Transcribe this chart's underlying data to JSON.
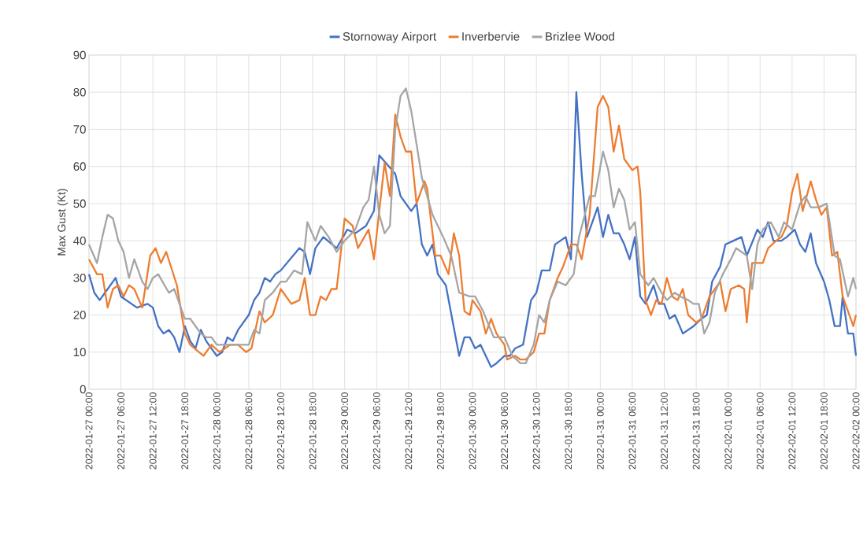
{
  "chart_data": {
    "type": "line",
    "ylabel": "Max Gust (Kt)",
    "legend": "top",
    "grid": true,
    "marker": "none",
    "line_style": "solid",
    "xlim": [
      "2022-01-27T00:00",
      "2022-02-02T00:00"
    ],
    "ylim": [
      0,
      90
    ],
    "yticks": [
      0,
      10,
      20,
      30,
      40,
      50,
      60,
      70,
      80,
      90
    ],
    "xticks": [
      {
        "value": "2022-01-27T00:00",
        "label": "2022-01-27 00:00"
      },
      {
        "value": "2022-01-27T06:00",
        "label": "2022-01-27 06:00"
      },
      {
        "value": "2022-01-27T12:00",
        "label": "2022-01-27 12:00"
      },
      {
        "value": "2022-01-27T18:00",
        "label": "2022-01-27 18:00"
      },
      {
        "value": "2022-01-28T00:00",
        "label": "2022-01-28 00:00"
      },
      {
        "value": "2022-01-28T06:00",
        "label": "2022-01-28 06:00"
      },
      {
        "value": "2022-01-28T12:00",
        "label": "2022-01-28 12:00"
      },
      {
        "value": "2022-01-28T18:00",
        "label": "2022-01-28 18:00"
      },
      {
        "value": "2022-01-29T00:00",
        "label": "2022-01-29 00:00"
      },
      {
        "value": "2022-01-29T06:00",
        "label": "2022-01-29 06:00"
      },
      {
        "value": "2022-01-29T12:00",
        "label": "2022-01-29 12:00"
      },
      {
        "value": "2022-01-29T18:00",
        "label": "2022-01-29 18:00"
      },
      {
        "value": "2022-01-30T00:00",
        "label": "2022-01-30 00:00"
      },
      {
        "value": "2022-01-30T06:00",
        "label": "2022-01-30 06:00"
      },
      {
        "value": "2022-01-30T12:00",
        "label": "2022-01-30 12:00"
      },
      {
        "value": "2022-01-30T18:00",
        "label": "2022-01-30 18:00"
      },
      {
        "value": "2022-01-31T00:00",
        "label": "2022-01-31 00:00"
      },
      {
        "value": "2022-01-31T06:00",
        "label": "2022-01-31 06:00"
      },
      {
        "value": "2022-01-31T12:00",
        "label": "2022-01-31 12:00"
      },
      {
        "value": "2022-01-31T18:00",
        "label": "2022-01-31 18:00"
      },
      {
        "value": "2022-02-01T00:00",
        "label": "2022-02-01 00:00"
      },
      {
        "value": "2022-02-01T06:00",
        "label": "2022-02-01 06:00"
      },
      {
        "value": "2022-02-01T12:00",
        "label": "2022-02-01 12:00"
      },
      {
        "value": "2022-02-01T18:00",
        "label": "2022-02-01 18:00"
      },
      {
        "value": "2022-02-02T00:00",
        "label": "2022-02-02 00:00"
      }
    ],
    "series": [
      {
        "name": "Stornoway Airport",
        "color": "#4472c4",
        "x": [
          "2022-01-27T00:00",
          "2022-01-27T01:00",
          "2022-01-27T02:00",
          "2022-01-27T03:00",
          "2022-01-27T05:00",
          "2022-01-27T06:00",
          "2022-01-27T09:00",
          "2022-01-27T11:00",
          "2022-01-27T12:00",
          "2022-01-27T13:00",
          "2022-01-27T14:00",
          "2022-01-27T15:00",
          "2022-01-27T16:00",
          "2022-01-27T17:00",
          "2022-01-27T18:00",
          "2022-01-27T19:00",
          "2022-01-27T20:00",
          "2022-01-27T21:00",
          "2022-01-27T22:00",
          "2022-01-27T23:00",
          "2022-01-28T00:00",
          "2022-01-28T01:00",
          "2022-01-28T02:00",
          "2022-01-28T03:00",
          "2022-01-28T04:00",
          "2022-01-28T06:00",
          "2022-01-28T07:00",
          "2022-01-28T08:00",
          "2022-01-28T09:00",
          "2022-01-28T10:00",
          "2022-01-28T11:00",
          "2022-01-28T12:00",
          "2022-01-28T15:30",
          "2022-01-28T16:30",
          "2022-01-28T17:30",
          "2022-01-28T18:30",
          "2022-01-28T20:00",
          "2022-01-28T22:30",
          "2022-01-29T00:30",
          "2022-01-29T02:00",
          "2022-01-29T04:00",
          "2022-01-29T05:30",
          "2022-01-29T06:30",
          "2022-01-29T09:30",
          "2022-01-29T10:30",
          "2022-01-29T12:30",
          "2022-01-29T13:30",
          "2022-01-29T14:30",
          "2022-01-29T15:30",
          "2022-01-29T16:30",
          "2022-01-29T17:30",
          "2022-01-29T19:00",
          "2022-01-29T21:30",
          "2022-01-29T22:30",
          "2022-01-29T23:30",
          "2022-01-30T00:30",
          "2022-01-30T01:30",
          "2022-01-30T03:30",
          "2022-01-30T04:30",
          "2022-01-30T06:00",
          "2022-01-30T07:00",
          "2022-01-30T08:00",
          "2022-01-30T09:30",
          "2022-01-30T10:30",
          "2022-01-30T11:00",
          "2022-01-30T12:00",
          "2022-01-30T13:00",
          "2022-01-30T14:30",
          "2022-01-30T15:30",
          "2022-01-30T17:30",
          "2022-01-30T18:30",
          "2022-01-30T19:30",
          "2022-01-30T20:30",
          "2022-01-30T21:30",
          "2022-01-30T23:30",
          "2022-01-31T00:30",
          "2022-01-31T01:30",
          "2022-01-31T02:30",
          "2022-01-31T03:30",
          "2022-01-31T04:30",
          "2022-01-31T05:30",
          "2022-01-31T06:30",
          "2022-01-31T07:30",
          "2022-01-31T08:30",
          "2022-01-31T10:00",
          "2022-01-31T11:00",
          "2022-01-31T12:00",
          "2022-01-31T13:00",
          "2022-01-31T14:00",
          "2022-01-31T15:30",
          "2022-01-31T17:30",
          "2022-01-31T19:00",
          "2022-01-31T20:00",
          "2022-01-31T21:00",
          "2022-01-31T22:30",
          "2022-01-31T23:30",
          "2022-02-01T01:00",
          "2022-02-01T02:30",
          "2022-02-01T03:30",
          "2022-02-01T05:30",
          "2022-02-01T06:30",
          "2022-02-01T07:30",
          "2022-02-01T08:30",
          "2022-02-01T10:00",
          "2022-02-01T11:00",
          "2022-02-01T12:30",
          "2022-02-01T13:30",
          "2022-02-01T14:30",
          "2022-02-01T15:30",
          "2022-02-01T16:30",
          "2022-02-01T18:00",
          "2022-02-01T19:00",
          "2022-02-01T20:00",
          "2022-02-01T21:00",
          "2022-02-01T21:30",
          "2022-02-01T22:30",
          "2022-02-01T23:30",
          "2022-02-02T00:00"
        ],
        "values": [
          31,
          26,
          24,
          26,
          30,
          25,
          22,
          23,
          22,
          17,
          15,
          16,
          14,
          10,
          17,
          13,
          11,
          16,
          13,
          11,
          9,
          10,
          14,
          13,
          16,
          20,
          24,
          26,
          30,
          29,
          31,
          32,
          38,
          37,
          31,
          38,
          41,
          38,
          43,
          42,
          44,
          48,
          63,
          58,
          52,
          48,
          50,
          39,
          36,
          39,
          31,
          28,
          9,
          14,
          14,
          11,
          12,
          6,
          7,
          9,
          9,
          11,
          12,
          20,
          24,
          26,
          32,
          32,
          39,
          41,
          35,
          80,
          58,
          41,
          49,
          41,
          47,
          42,
          42,
          39,
          35,
          41,
          25,
          23,
          28,
          23,
          23,
          19,
          20,
          15,
          17,
          19,
          20,
          29,
          33,
          39,
          40,
          41,
          36,
          43,
          41,
          45,
          40,
          40,
          41,
          43,
          39,
          37,
          42,
          34,
          29,
          24,
          17,
          17,
          25,
          15,
          15,
          9
        ]
      },
      {
        "name": "Inverbervie",
        "color": "#ed7d31",
        "x": [
          "2022-01-27T00:00",
          "2022-01-27T01:30",
          "2022-01-27T02:30",
          "2022-01-27T03:30",
          "2022-01-27T04:30",
          "2022-01-27T05:30",
          "2022-01-27T06:30",
          "2022-01-27T07:30",
          "2022-01-27T08:30",
          "2022-01-27T10:00",
          "2022-01-27T11:30",
          "2022-01-27T12:30",
          "2022-01-27T13:30",
          "2022-01-27T14:30",
          "2022-01-27T16:30",
          "2022-01-27T18:00",
          "2022-01-27T19:00",
          "2022-01-27T21:30",
          "2022-01-27T23:00",
          "2022-01-28T00:30",
          "2022-01-28T02:30",
          "2022-01-28T04:00",
          "2022-01-28T05:30",
          "2022-01-28T06:30",
          "2022-01-28T08:00",
          "2022-01-28T09:00",
          "2022-01-28T10:30",
          "2022-01-28T12:00",
          "2022-01-28T14:00",
          "2022-01-28T15:30",
          "2022-01-28T16:30",
          "2022-01-28T17:30",
          "2022-01-28T18:30",
          "2022-01-28T19:30",
          "2022-01-28T20:30",
          "2022-01-28T21:30",
          "2022-01-28T22:30",
          "2022-01-29T00:00",
          "2022-01-29T01:30",
          "2022-01-29T02:30",
          "2022-01-29T04:30",
          "2022-01-29T05:30",
          "2022-01-29T07:30",
          "2022-01-29T08:30",
          "2022-01-29T09:30",
          "2022-01-29T10:30",
          "2022-01-29T11:30",
          "2022-01-29T12:30",
          "2022-01-29T13:30",
          "2022-01-29T15:00",
          "2022-01-29T15:30",
          "2022-01-29T17:00",
          "2022-01-29T18:00",
          "2022-01-29T19:30",
          "2022-01-29T20:30",
          "2022-01-29T21:30",
          "2022-01-29T22:30",
          "2022-01-29T23:30",
          "2022-01-30T00:00",
          "2022-01-30T01:30",
          "2022-01-30T02:30",
          "2022-01-30T03:30",
          "2022-01-30T04:30",
          "2022-01-30T06:00",
          "2022-01-30T06:30",
          "2022-01-30T08:00",
          "2022-01-30T09:00",
          "2022-01-30T10:00",
          "2022-01-30T11:30",
          "2022-01-30T12:30",
          "2022-01-30T13:30",
          "2022-01-30T14:30",
          "2022-01-30T16:00",
          "2022-01-30T17:00",
          "2022-01-30T18:30",
          "2022-01-30T19:30",
          "2022-01-30T20:30",
          "2022-01-30T22:00",
          "2022-01-30T23:30",
          "2022-01-31T00:30",
          "2022-01-31T01:30",
          "2022-01-31T02:30",
          "2022-01-31T03:30",
          "2022-01-31T04:30",
          "2022-01-31T06:00",
          "2022-01-31T07:00",
          "2022-01-31T07:30",
          "2022-01-31T08:30",
          "2022-01-31T09:30",
          "2022-01-31T10:30",
          "2022-01-31T11:30",
          "2022-01-31T12:30",
          "2022-01-31T13:30",
          "2022-01-31T14:30",
          "2022-01-31T15:30",
          "2022-01-31T16:30",
          "2022-01-31T18:00",
          "2022-01-31T19:00",
          "2022-01-31T20:30",
          "2022-01-31T22:30",
          "2022-01-31T23:30",
          "2022-02-01T00:30",
          "2022-02-01T02:00",
          "2022-02-01T03:00",
          "2022-02-01T03:30",
          "2022-02-01T04:30",
          "2022-02-01T05:30",
          "2022-02-01T06:30",
          "2022-02-01T07:30",
          "2022-02-01T09:00",
          "2022-02-01T10:00",
          "2022-02-01T11:00",
          "2022-02-01T12:00",
          "2022-02-01T13:00",
          "2022-02-01T14:00",
          "2022-02-01T15:30",
          "2022-02-01T16:30",
          "2022-02-01T17:30",
          "2022-02-01T18:30",
          "2022-02-01T19:30",
          "2022-02-01T20:30",
          "2022-02-01T21:30",
          "2022-02-01T23:30",
          "2022-02-02T00:00"
        ],
        "values": [
          35,
          31,
          31,
          22,
          27,
          28,
          25,
          28,
          27,
          22,
          36,
          38,
          34,
          37,
          28,
          15,
          12,
          9,
          12,
          10,
          12,
          12,
          10,
          11,
          21,
          18,
          20,
          27,
          23,
          24,
          30,
          20,
          20,
          25,
          24,
          27,
          27,
          46,
          44,
          38,
          43,
          35,
          61,
          52,
          74,
          68,
          64,
          64,
          50,
          56,
          54,
          36,
          36,
          31,
          42,
          36,
          21,
          20,
          24,
          21,
          15,
          19,
          15,
          12,
          8,
          9,
          8,
          8,
          10,
          15,
          15,
          24,
          30,
          33,
          39,
          39,
          35,
          47,
          76,
          79,
          76,
          64,
          71,
          62,
          59,
          60,
          53,
          24,
          20,
          24,
          23,
          30,
          25,
          24,
          27,
          20,
          18,
          19,
          25,
          29,
          21,
          27,
          28,
          27,
          18,
          34,
          34,
          34,
          38,
          40,
          41,
          44,
          53,
          58,
          48,
          56,
          51,
          47,
          49,
          36,
          37,
          25,
          17,
          20
        ]
      },
      {
        "name": "Brizlee Wood",
        "color": "#a5a5a5",
        "x": [
          "2022-01-27T00:00",
          "2022-01-27T01:30",
          "2022-01-27T02:30",
          "2022-01-27T03:30",
          "2022-01-27T04:30",
          "2022-01-27T05:30",
          "2022-01-27T06:30",
          "2022-01-27T07:30",
          "2022-01-27T08:30",
          "2022-01-27T10:00",
          "2022-01-27T11:00",
          "2022-01-27T12:00",
          "2022-01-27T13:00",
          "2022-01-27T15:00",
          "2022-01-27T16:00",
          "2022-01-27T18:00",
          "2022-01-27T19:00",
          "2022-01-27T21:00",
          "2022-01-27T22:00",
          "2022-01-27T23:00",
          "2022-01-28T00:00",
          "2022-01-28T02:00",
          "2022-01-28T03:00",
          "2022-01-28T05:00",
          "2022-01-28T06:00",
          "2022-01-28T07:00",
          "2022-01-28T08:00",
          "2022-01-28T09:00",
          "2022-01-28T10:30",
          "2022-01-28T12:00",
          "2022-01-28T13:00",
          "2022-01-28T14:30",
          "2022-01-28T16:00",
          "2022-01-28T17:00",
          "2022-01-28T18:30",
          "2022-01-28T19:30",
          "2022-01-28T21:00",
          "2022-01-28T22:30",
          "2022-01-29T00:00",
          "2022-01-29T02:00",
          "2022-01-29T03:30",
          "2022-01-29T04:30",
          "2022-01-29T05:30",
          "2022-01-29T06:30",
          "2022-01-29T07:30",
          "2022-01-29T08:30",
          "2022-01-29T09:30",
          "2022-01-29T10:30",
          "2022-01-29T11:30",
          "2022-01-29T12:30",
          "2022-01-29T14:30",
          "2022-01-29T16:30",
          "2022-01-29T18:30",
          "2022-01-29T20:00",
          "2022-01-29T21:30",
          "2022-01-29T23:30",
          "2022-01-30T00:30",
          "2022-01-30T02:00",
          "2022-01-30T04:00",
          "2022-01-30T05:00",
          "2022-01-30T06:00",
          "2022-01-30T07:30",
          "2022-01-30T09:00",
          "2022-01-30T10:00",
          "2022-01-30T11:30",
          "2022-01-30T12:30",
          "2022-01-30T13:30",
          "2022-01-30T14:30",
          "2022-01-30T16:00",
          "2022-01-30T17:30",
          "2022-01-30T19:00",
          "2022-01-30T20:00",
          "2022-01-30T22:00",
          "2022-01-30T23:00",
          "2022-01-31T00:30",
          "2022-01-31T01:30",
          "2022-01-31T02:30",
          "2022-01-31T03:30",
          "2022-01-31T04:30",
          "2022-01-31T05:30",
          "2022-01-31T06:30",
          "2022-01-31T07:30",
          "2022-01-31T09:00",
          "2022-01-31T10:00",
          "2022-01-31T11:30",
          "2022-01-31T12:30",
          "2022-01-31T14:00",
          "2022-01-31T15:00",
          "2022-01-31T16:30",
          "2022-01-31T17:30",
          "2022-01-31T18:30",
          "2022-01-31T19:30",
          "2022-01-31T20:30",
          "2022-01-31T21:30",
          "2022-01-31T23:00",
          "2022-02-01T00:30",
          "2022-02-01T01:30",
          "2022-02-01T03:30",
          "2022-02-01T04:30",
          "2022-02-01T05:30",
          "2022-02-01T06:30",
          "2022-02-01T08:00",
          "2022-02-01T09:30",
          "2022-02-01T10:30",
          "2022-02-01T12:00",
          "2022-02-01T13:30",
          "2022-02-01T14:30",
          "2022-02-01T15:30",
          "2022-02-01T17:00",
          "2022-02-01T18:30",
          "2022-02-01T20:00",
          "2022-02-01T21:00",
          "2022-02-01T22:30",
          "2022-02-01T23:30",
          "2022-02-02T00:00"
        ],
        "values": [
          39,
          34,
          41,
          47,
          46,
          40,
          37,
          30,
          35,
          29,
          27,
          30,
          31,
          26,
          27,
          19,
          19,
          15,
          14,
          14,
          12,
          12,
          12,
          12,
          12,
          16,
          15,
          24,
          26,
          29,
          29,
          32,
          31,
          45,
          40,
          44,
          41,
          37,
          40,
          43,
          49,
          51,
          60,
          47,
          42,
          44,
          70,
          79,
          81,
          75,
          57,
          47,
          41,
          36,
          26,
          25,
          25,
          21,
          14,
          14,
          14,
          9,
          7,
          7,
          12,
          20,
          18,
          24,
          29,
          28,
          31,
          41,
          52,
          52,
          64,
          59,
          49,
          54,
          51,
          43,
          45,
          31,
          28,
          30,
          26,
          24,
          26,
          25,
          24,
          23,
          23,
          15,
          18,
          26,
          31,
          35,
          38,
          36,
          27,
          39,
          43,
          45,
          41,
          45,
          43,
          50,
          52,
          49,
          49,
          50,
          36,
          35,
          25,
          30,
          27
        ]
      }
    ]
  }
}
